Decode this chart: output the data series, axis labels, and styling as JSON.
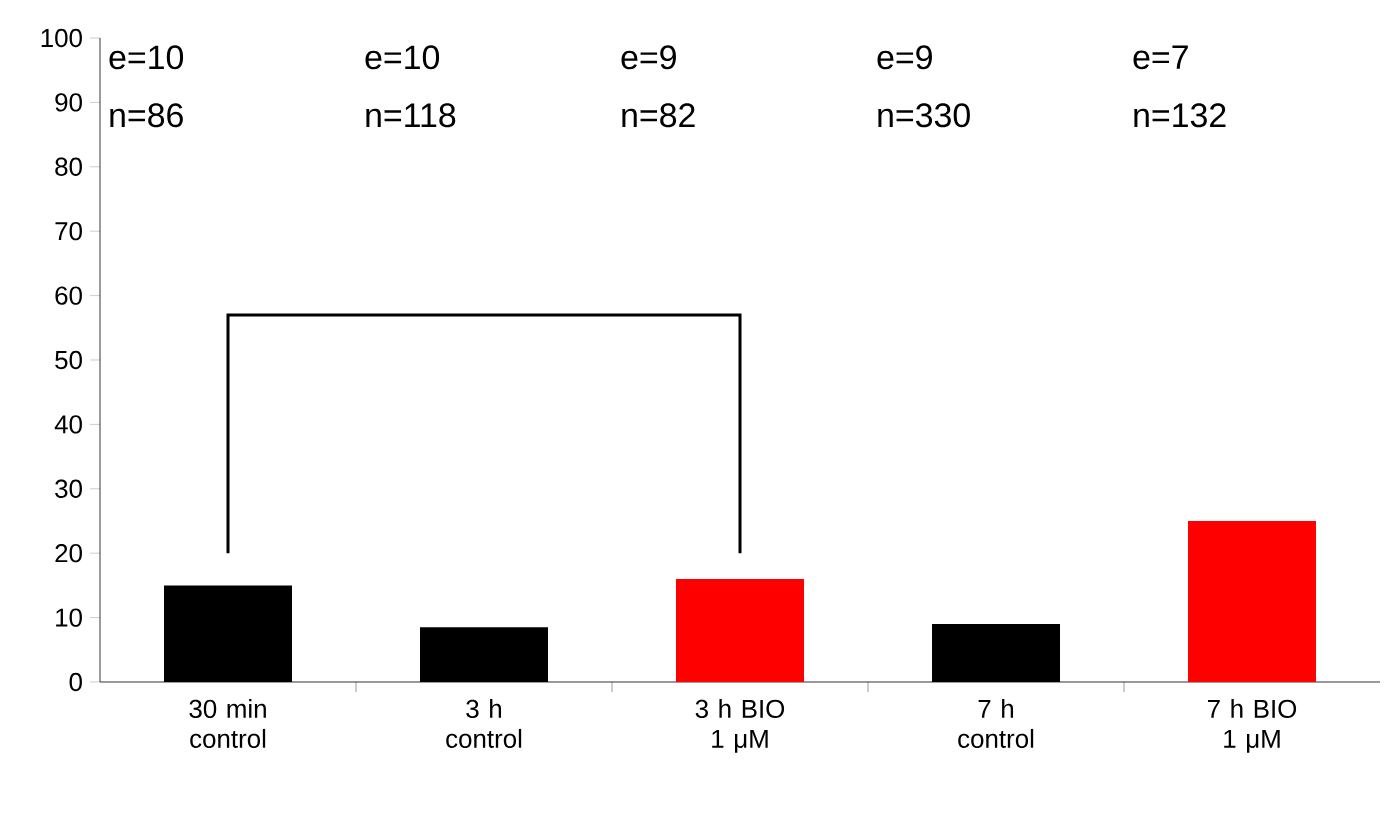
{
  "chart_data": {
    "type": "bar",
    "categories": [
      "30 min control",
      "3 h control",
      "3 h BIO 1 μM",
      "7 h control",
      "7 h BIO 1 μM"
    ],
    "values": [
      15,
      8.5,
      16,
      9,
      25
    ],
    "colors": [
      "#000000",
      "#000000",
      "#ff0000",
      "#000000",
      "#ff0000"
    ],
    "ylim": [
      0,
      100
    ],
    "yticks": [
      0,
      10,
      20,
      30,
      40,
      50,
      60,
      70,
      80,
      90,
      100
    ],
    "annotations": [
      "e=10",
      "n=86",
      "e=10",
      "n=118",
      "e=9",
      "n=82",
      "e=9",
      "n=330",
      "e=7",
      "n=132"
    ]
  }
}
